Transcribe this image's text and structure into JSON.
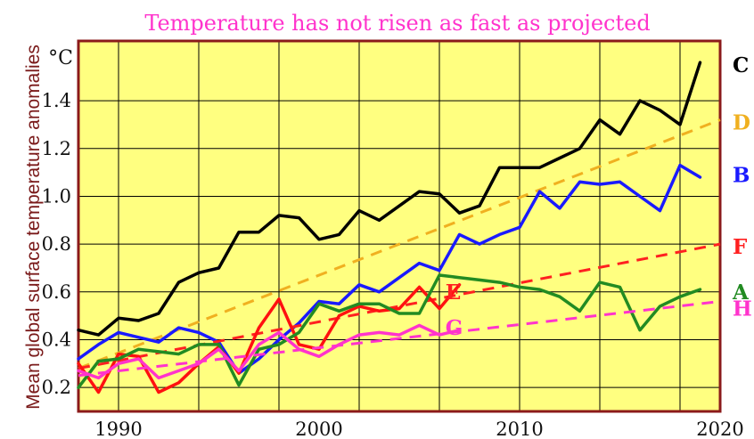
{
  "chart_data": {
    "type": "line",
    "title": "Temperature has not risen as fast as projected",
    "ylabel": "Mean global surface temperature anomalies",
    "yunit": "°C",
    "xlim": [
      1988,
      2020
    ],
    "ylim": [
      0.1,
      1.65
    ],
    "xticks": [
      1990,
      2000,
      2010,
      2020
    ],
    "yticks": [
      0.2,
      0.4,
      0.6,
      0.8,
      1.0,
      1.2,
      1.4
    ],
    "ytick_labels": [
      "0.2",
      "0.4",
      "0.6",
      "0.8",
      "1.0",
      "1.2",
      "1.4"
    ],
    "grid": true,
    "background_color": "#ffff80",
    "border_color": "#8b1a1a",
    "series": [
      {
        "name": "C",
        "color": "#000000",
        "dashed": false,
        "x": [
          1988,
          1989,
          1990,
          1991,
          1992,
          1993,
          1994,
          1995,
          1996,
          1997,
          1998,
          1999,
          2000,
          2001,
          2002,
          2003,
          2004,
          2005,
          2006,
          2007,
          2008,
          2009,
          2010,
          2011,
          2012,
          2013,
          2014,
          2015,
          2016,
          2017,
          2018,
          2019
        ],
        "y": [
          0.44,
          0.42,
          0.49,
          0.48,
          0.51,
          0.64,
          0.68,
          0.7,
          0.85,
          0.85,
          0.92,
          0.91,
          0.82,
          0.84,
          0.94,
          0.9,
          0.96,
          1.02,
          1.01,
          0.93,
          0.96,
          1.12,
          1.12,
          1.12,
          1.16,
          1.2,
          1.32,
          1.26,
          1.4,
          1.36,
          1.3,
          1.56
        ]
      },
      {
        "name": "D",
        "color": "#f0b020",
        "dashed": true,
        "x": [
          1988,
          2020
        ],
        "y": [
          0.28,
          1.32
        ]
      },
      {
        "name": "B",
        "color": "#1a1aff",
        "dashed": false,
        "x": [
          1988,
          1989,
          1990,
          1991,
          1992,
          1993,
          1994,
          1995,
          1996,
          1997,
          1998,
          1999,
          2000,
          2001,
          2002,
          2003,
          2004,
          2005,
          2006,
          2007,
          2008,
          2009,
          2010,
          2011,
          2012,
          2013,
          2014,
          2015,
          2016,
          2017,
          2018,
          2019
        ],
        "y": [
          0.32,
          0.38,
          0.43,
          0.41,
          0.39,
          0.45,
          0.43,
          0.39,
          0.26,
          0.32,
          0.4,
          0.47,
          0.56,
          0.55,
          0.63,
          0.6,
          0.66,
          0.72,
          0.69,
          0.84,
          0.8,
          0.84,
          0.87,
          1.02,
          0.95,
          1.06,
          1.05,
          1.06,
          1.0,
          0.94,
          1.13,
          1.08
        ]
      },
      {
        "name": "F",
        "color": "#ff2020",
        "dashed": true,
        "x": [
          1988,
          2020
        ],
        "y": [
          0.28,
          0.8
        ]
      },
      {
        "name": "E",
        "color": "#ff1010",
        "dashed": false,
        "x": [
          1988,
          1989,
          1990,
          1991,
          1992,
          1993,
          1994,
          1995,
          1996,
          1997,
          1998,
          1999,
          2000,
          2001,
          2002,
          2003,
          2004,
          2005,
          2006,
          2007
        ],
        "y": [
          0.3,
          0.18,
          0.34,
          0.33,
          0.18,
          0.22,
          0.3,
          0.37,
          0.26,
          0.45,
          0.57,
          0.38,
          0.36,
          0.5,
          0.54,
          0.52,
          0.53,
          0.62,
          0.53,
          0.63
        ]
      },
      {
        "name": "A",
        "color": "#228b22",
        "dashed": false,
        "x": [
          1988,
          1989,
          1990,
          1991,
          1992,
          1993,
          1994,
          1995,
          1996,
          1997,
          1998,
          1999,
          2000,
          2001,
          2002,
          2003,
          2004,
          2005,
          2006,
          2007,
          2008,
          2009,
          2010,
          2011,
          2012,
          2013,
          2014,
          2015,
          2016,
          2017,
          2018,
          2019
        ],
        "y": [
          0.2,
          0.31,
          0.32,
          0.36,
          0.35,
          0.34,
          0.38,
          0.38,
          0.21,
          0.36,
          0.38,
          0.43,
          0.55,
          0.52,
          0.55,
          0.55,
          0.51,
          0.51,
          0.67,
          0.66,
          0.65,
          0.64,
          0.62,
          0.61,
          0.58,
          0.52,
          0.64,
          0.62,
          0.44,
          0.54,
          0.58,
          0.61
        ]
      },
      {
        "name": "H",
        "color": "#ff33cc",
        "dashed": true,
        "x": [
          1988,
          2020
        ],
        "y": [
          0.25,
          0.56
        ]
      },
      {
        "name": "G",
        "color": "#ff33cc",
        "dashed": false,
        "x": [
          1988,
          1989,
          1990,
          1991,
          1992,
          1993,
          1994,
          1995,
          1996,
          1997,
          1998,
          1999,
          2000,
          2001,
          2002,
          2003,
          2004,
          2005,
          2006,
          2007
        ],
        "y": [
          0.27,
          0.24,
          0.3,
          0.32,
          0.24,
          0.27,
          0.3,
          0.36,
          0.27,
          0.38,
          0.43,
          0.36,
          0.33,
          0.38,
          0.42,
          0.43,
          0.42,
          0.46,
          0.42,
          0.44
        ]
      }
    ],
    "labels": [
      {
        "text": "C",
        "x": 2021,
        "y": 1.55,
        "color": "#000000"
      },
      {
        "text": "D",
        "x": 2021,
        "y": 1.31,
        "color": "#f0b020"
      },
      {
        "text": "B",
        "x": 2021,
        "y": 1.09,
        "color": "#1a1aff"
      },
      {
        "text": "F",
        "x": 2021,
        "y": 0.79,
        "color": "#ff2020"
      },
      {
        "text": "A",
        "x": 2021,
        "y": 0.6,
        "color": "#228b22"
      },
      {
        "text": "H",
        "x": 2021,
        "y": 0.53,
        "color": "#ff33cc"
      },
      {
        "text": "E",
        "x": 2006.3,
        "y": 0.6,
        "color": "#ff2020"
      },
      {
        "text": "G",
        "x": 2006.3,
        "y": 0.45,
        "color": "#ff33cc"
      }
    ]
  }
}
